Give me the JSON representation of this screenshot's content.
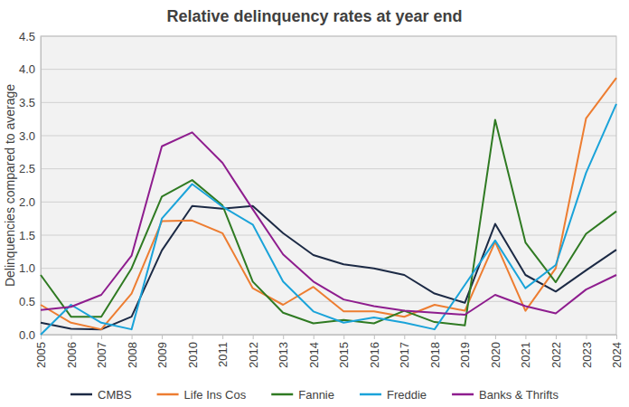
{
  "chart_data": {
    "type": "line",
    "title": "Relative delinquency rates at year end",
    "y_label": "Delinquencies compared to average",
    "categories": [
      "2005",
      "2006",
      "2007",
      "2008",
      "2009",
      "2010",
      "2011",
      "2012",
      "2013",
      "2014",
      "2015",
      "2016",
      "2017",
      "2018",
      "2019",
      "2020",
      "2021",
      "2022",
      "2023",
      "2024"
    ],
    "series": [
      {
        "name": "CMBS",
        "color": "#1c2a45",
        "values": [
          0.18,
          0.09,
          0.08,
          0.27,
          1.27,
          1.94,
          1.9,
          1.94,
          1.53,
          1.2,
          1.06,
          1.0,
          0.9,
          0.62,
          0.48,
          1.67,
          0.9,
          0.65,
          0.97,
          1.28
        ]
      },
      {
        "name": "Life Ins Cos",
        "color": "#ed7d31",
        "values": [
          0.45,
          0.18,
          0.08,
          0.62,
          1.71,
          1.72,
          1.53,
          0.7,
          0.45,
          0.72,
          0.35,
          0.35,
          0.27,
          0.45,
          0.36,
          1.4,
          0.36,
          1.0,
          3.26,
          3.87
        ]
      },
      {
        "name": "Fannie",
        "color": "#2f7a22",
        "values": [
          0.9,
          0.27,
          0.27,
          1.0,
          2.08,
          2.33,
          1.95,
          0.8,
          0.33,
          0.17,
          0.22,
          0.17,
          0.36,
          0.19,
          0.14,
          3.24,
          1.39,
          0.79,
          1.52,
          1.86
        ]
      },
      {
        "name": "Freddie",
        "color": "#1aa3d9",
        "values": [
          0.0,
          0.45,
          0.18,
          0.08,
          1.75,
          2.27,
          1.93,
          1.66,
          0.8,
          0.35,
          0.18,
          0.26,
          0.18,
          0.08,
          0.75,
          1.42,
          0.7,
          1.05,
          2.44,
          3.48
        ]
      },
      {
        "name": "Banks & Thrifts",
        "color": "#8e1d8e",
        "values": [
          0.37,
          0.42,
          0.6,
          1.19,
          2.84,
          3.05,
          2.59,
          1.89,
          1.21,
          0.8,
          0.53,
          0.43,
          0.36,
          0.33,
          0.3,
          0.6,
          0.43,
          0.32,
          0.68,
          0.9
        ]
      }
    ],
    "ylim": [
      0,
      4.5
    ],
    "yticks": [
      {
        "value": 0,
        "label": "0.0"
      },
      0.5,
      {
        "value": 1,
        "label": "1.0"
      },
      1.5,
      {
        "value": 2,
        "label": "2.0"
      },
      2.5,
      {
        "value": 3,
        "label": "3.0"
      },
      3.5,
      {
        "value": 4,
        "label": "4.0"
      },
      4.5
    ],
    "grid": true,
    "legend": "bottom"
  }
}
